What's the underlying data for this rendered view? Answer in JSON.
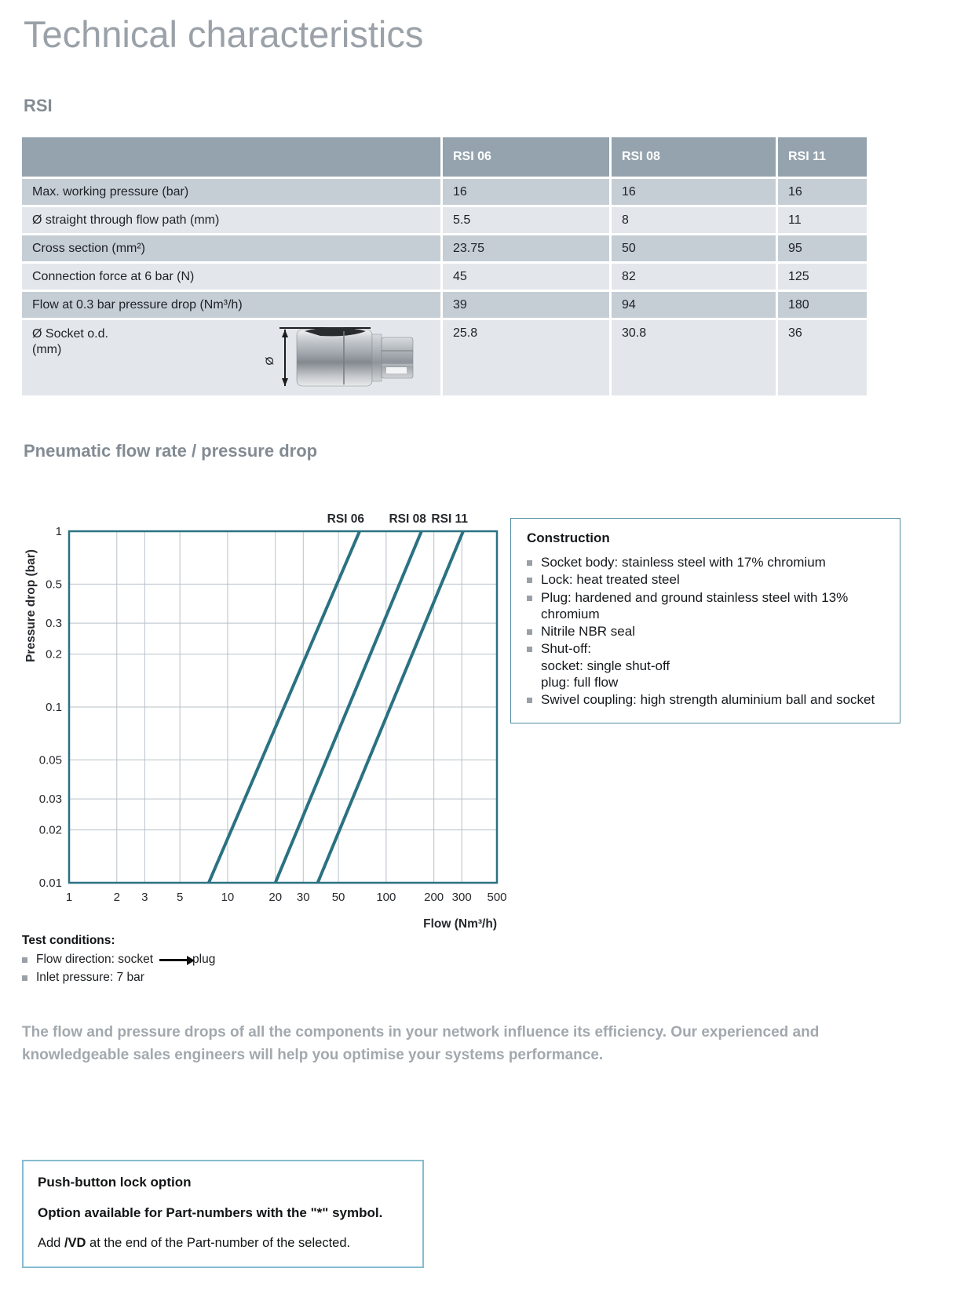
{
  "page": {
    "title": "Technical characteristics"
  },
  "sections": {
    "rsi_heading": "RSI",
    "chart_heading": "Pneumatic flow rate / pressure drop"
  },
  "table": {
    "corner": "",
    "columns": [
      "RSI 06",
      "RSI 08",
      "RSI 11"
    ],
    "rows": [
      {
        "label": "Max. working pressure (bar)",
        "values": [
          "16",
          "16",
          "16"
        ]
      },
      {
        "label": "Ø straight through flow path (mm)",
        "values": [
          "5.5",
          "8",
          "11"
        ]
      },
      {
        "label": "Cross section (mm²)",
        "values": [
          "23.75",
          "50",
          "95"
        ]
      },
      {
        "label": "Connection force at 6 bar (N)",
        "values": [
          "45",
          "82",
          "125"
        ]
      },
      {
        "label": "Flow at 0.3 bar pressure drop (Nm³/h)",
        "values": [
          "39",
          "94",
          "180"
        ]
      },
      {
        "label": "Ø Socket o.d.\n(mm)",
        "values": [
          "25.8",
          "30.8",
          "36"
        ],
        "diagram": "socket-photo-with-diameter-dimension",
        "dimension_symbol": "Ø"
      }
    ]
  },
  "chart_data": {
    "type": "line",
    "title": "Pneumatic flow rate / pressure drop",
    "xlabel": "Flow (Nm³/h)",
    "ylabel": "Pressure drop (bar)",
    "x_scale": "log",
    "y_scale": "log",
    "xlim": [
      1,
      500
    ],
    "ylim": [
      0.01,
      1
    ],
    "x_ticks": [
      1,
      2,
      3,
      5,
      10,
      20,
      30,
      50,
      100,
      200,
      300,
      500
    ],
    "y_ticks": [
      1,
      0.5,
      0.3,
      0.2,
      0.1,
      0.05,
      0.03,
      0.02,
      0.01
    ],
    "grid": true,
    "legend_position": "top",
    "line_color": "#2a7282",
    "grid_color": "#b7c1c9",
    "tick_color": "#26292d",
    "series": [
      {
        "name": "RSI 06",
        "points": [
          [
            7.6,
            0.01
          ],
          [
            68,
            1
          ]
        ]
      },
      {
        "name": "RSI 08",
        "points": [
          [
            20,
            0.01
          ],
          [
            167,
            1
          ]
        ]
      },
      {
        "name": "RSI 11",
        "points": [
          [
            37,
            0.01
          ],
          [
            306,
            1
          ]
        ]
      }
    ]
  },
  "construction": {
    "heading": "Construction",
    "items": [
      "Socket body: stainless steel with 17% chromium",
      "Lock: heat treated steel",
      "Plug: hardened and ground stainless steel with 13% chromium",
      "Nitrile NBR seal",
      "Shut-off:\nsocket: single shut-off\nplug: full flow",
      "Swivel coupling: high strength aluminium ball and socket"
    ]
  },
  "test_conditions": {
    "heading": "Test conditions:",
    "items": [
      {
        "before": "Flow direction: socket",
        "after": "plug",
        "arrow": "right-arrow"
      },
      {
        "before": "Inlet pressure: 7 bar",
        "after": ""
      }
    ]
  },
  "note_paragraph": "The flow and pressure drops of all the components in your network influence its efficiency. Our experienced and knowledgeable sales engineers will help you optimise your systems performance.",
  "pushbutton_box": {
    "heading": "Push-button lock option",
    "line2": "Option available for Part-numbers with the \"*\" symbol.",
    "line3_pre": "Add ",
    "line3_bold": "/VD",
    "line3_post": " at the end of the Part-number of the selected."
  }
}
